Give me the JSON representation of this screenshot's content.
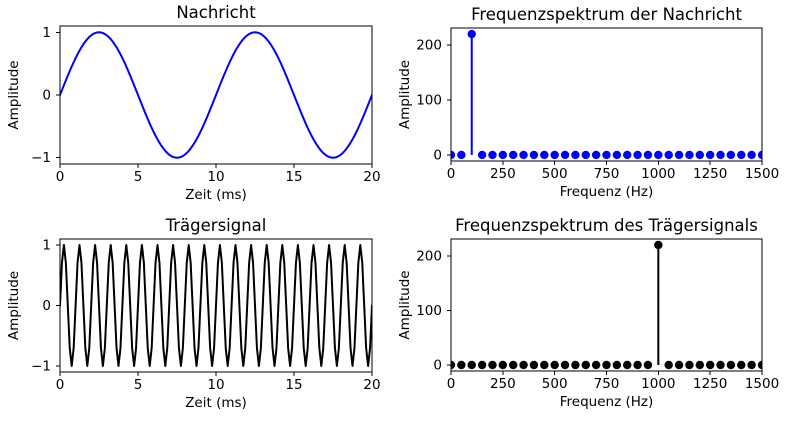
{
  "figure": {
    "background": "#ffffff",
    "text_color": "#000000"
  },
  "chart_data": [
    {
      "id": "nachricht",
      "type": "line",
      "title": "Nachricht",
      "xlabel": "Zeit (ms)",
      "ylabel": "Amplitude",
      "color": "#0000ff",
      "xlim": [
        0,
        20
      ],
      "ylim": [
        -1.1,
        1.1
      ],
      "xticks": [
        0,
        5,
        10,
        15,
        20
      ],
      "xtick_labels": [
        "0",
        "5",
        "10",
        "15",
        "20"
      ],
      "yticks": [
        -1,
        0,
        1
      ],
      "ytick_labels": [
        "−1",
        "0",
        "1"
      ],
      "grid": false,
      "signal": {
        "shape": "sine",
        "frequency_hz": 100,
        "amplitude": 1,
        "duration_ms": 20,
        "cycles_shown": 2,
        "samples_per_cycle": 80
      }
    },
    {
      "id": "spektrum-nachricht",
      "type": "stem",
      "title": "Frequenzspektrum der Nachricht",
      "xlabel": "Frequenz (Hz)",
      "ylabel": "Amplitude",
      "color": "#0000ff",
      "xlim": [
        0,
        1500
      ],
      "ylim": [
        -11,
        231
      ],
      "xticks": [
        0,
        250,
        500,
        750,
        1000,
        1250,
        1500
      ],
      "xtick_labels": [
        "0",
        "250",
        "500",
        "750",
        "1000",
        "1250",
        "1500"
      ],
      "yticks": [
        0,
        100,
        200
      ],
      "ytick_labels": [
        "0",
        "100",
        "200"
      ],
      "grid": false,
      "stems": {
        "frequency_start_hz": 0,
        "frequency_step_hz": 50,
        "frequency_end_hz": 1500,
        "baseline_amplitude": 0,
        "peaks": [
          {
            "frequency_hz": 100,
            "amplitude": 220
          }
        ]
      }
    },
    {
      "id": "traegersignal",
      "type": "line",
      "title": "Trägersignal",
      "xlabel": "Zeit (ms)",
      "ylabel": "Amplitude",
      "color": "#000000",
      "xlim": [
        0,
        20
      ],
      "ylim": [
        -1.1,
        1.1
      ],
      "xticks": [
        0,
        5,
        10,
        15,
        20
      ],
      "xtick_labels": [
        "0",
        "5",
        "10",
        "15",
        "20"
      ],
      "yticks": [
        -1,
        0,
        1
      ],
      "ytick_labels": [
        "−1",
        "0",
        "1"
      ],
      "grid": false,
      "signal": {
        "shape": "sine",
        "frequency_hz": 1000,
        "amplitude": 1,
        "duration_ms": 20,
        "cycles_shown": 20,
        "samples_per_cycle": 8
      }
    },
    {
      "id": "spektrum-traegersignal",
      "type": "stem",
      "title": "Frequenzspektrum des Trägersignals",
      "xlabel": "Frequenz (Hz)",
      "ylabel": "Amplitude",
      "color": "#000000",
      "xlim": [
        0,
        1500
      ],
      "ylim": [
        -11,
        231
      ],
      "xticks": [
        0,
        250,
        500,
        750,
        1000,
        1250,
        1500
      ],
      "xtick_labels": [
        "0",
        "250",
        "500",
        "750",
        "1000",
        "1250",
        "1500"
      ],
      "yticks": [
        0,
        100,
        200
      ],
      "ytick_labels": [
        "0",
        "100",
        "200"
      ],
      "grid": false,
      "stems": {
        "frequency_start_hz": 0,
        "frequency_step_hz": 50,
        "frequency_end_hz": 1500,
        "baseline_amplitude": 0,
        "peaks": [
          {
            "frequency_hz": 1000,
            "amplitude": 220
          }
        ]
      }
    }
  ]
}
